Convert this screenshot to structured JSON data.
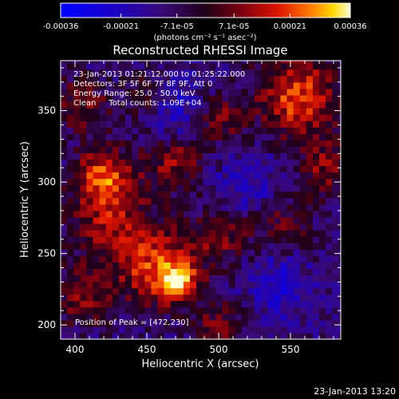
{
  "chart_data": {
    "type": "heatmap",
    "title": "Reconstructed RHESSI Image",
    "xlabel": "Heliocentric X (arcsec)",
    "ylabel": "Heliocentric Y (arcsec)",
    "xlim": [
      390,
      585
    ],
    "ylim": [
      190,
      385
    ],
    "x_ticks": [
      400,
      450,
      500,
      550
    ],
    "y_ticks": [
      200,
      250,
      300,
      350
    ],
    "colorbar": {
      "range": [
        -0.00036,
        0.00036
      ],
      "tick_values": [
        -0.00036,
        -0.00021,
        -7.1e-05,
        7.1e-05,
        0.00021,
        0.00036
      ],
      "tick_labels": [
        "-0.00036",
        "-0.00021",
        "-7.1e-05",
        "7.1e-05",
        "0.00021",
        "0.00036"
      ],
      "unit_label": "(photons cm⁻² s⁻¹ asec⁻²)"
    },
    "annotations": [
      "23-Jan-2013 01:21:12.000 to 01:25:22.000",
      "Detectors: 3F 5F 6F 7F 8F 9F, Att 0",
      "Energy Range: 25.0 - 50.0 keV",
      "Clean     Total counts: 1.09E+04"
    ],
    "peak_label": "Position of Peak = [472,230]",
    "peak": {
      "x": 472,
      "y": 230,
      "value": 0.00036
    },
    "features": [
      {
        "x": 472,
        "y": 230,
        "amp": 1.0,
        "sigma": 9
      },
      {
        "x": 455,
        "y": 240,
        "amp": 0.75,
        "sigma": 18
      },
      {
        "x": 425,
        "y": 275,
        "amp": 0.55,
        "sigma": 22
      },
      {
        "x": 500,
        "y": 260,
        "amp": 0.45,
        "sigma": 16
      },
      {
        "x": 405,
        "y": 220,
        "amp": 0.5,
        "sigma": 14
      },
      {
        "x": 420,
        "y": 305,
        "amp": 0.7,
        "sigma": 14
      },
      {
        "x": 470,
        "y": 315,
        "amp": 0.55,
        "sigma": 14
      },
      {
        "x": 500,
        "y": 345,
        "amp": 0.5,
        "sigma": 12
      },
      {
        "x": 555,
        "y": 360,
        "amp": 0.85,
        "sigma": 20
      },
      {
        "x": 575,
        "y": 310,
        "amp": 0.5,
        "sigma": 14
      },
      {
        "x": 545,
        "y": 270,
        "amp": 0.4,
        "sigma": 14
      },
      {
        "x": 405,
        "y": 355,
        "amp": 0.45,
        "sigma": 14
      },
      {
        "x": 450,
        "y": 360,
        "amp": 0.4,
        "sigma": 12
      },
      {
        "x": 500,
        "y": 200,
        "amp": 0.4,
        "sigma": 14
      },
      {
        "x": 540,
        "y": 230,
        "amp": -0.35,
        "sigma": 16
      },
      {
        "x": 470,
        "y": 350,
        "amp": -0.35,
        "sigma": 16
      },
      {
        "x": 520,
        "y": 300,
        "amp": -0.3,
        "sigma": 16
      }
    ]
  },
  "footer": {
    "timestamp": "23-Jan-2013 13:20"
  }
}
